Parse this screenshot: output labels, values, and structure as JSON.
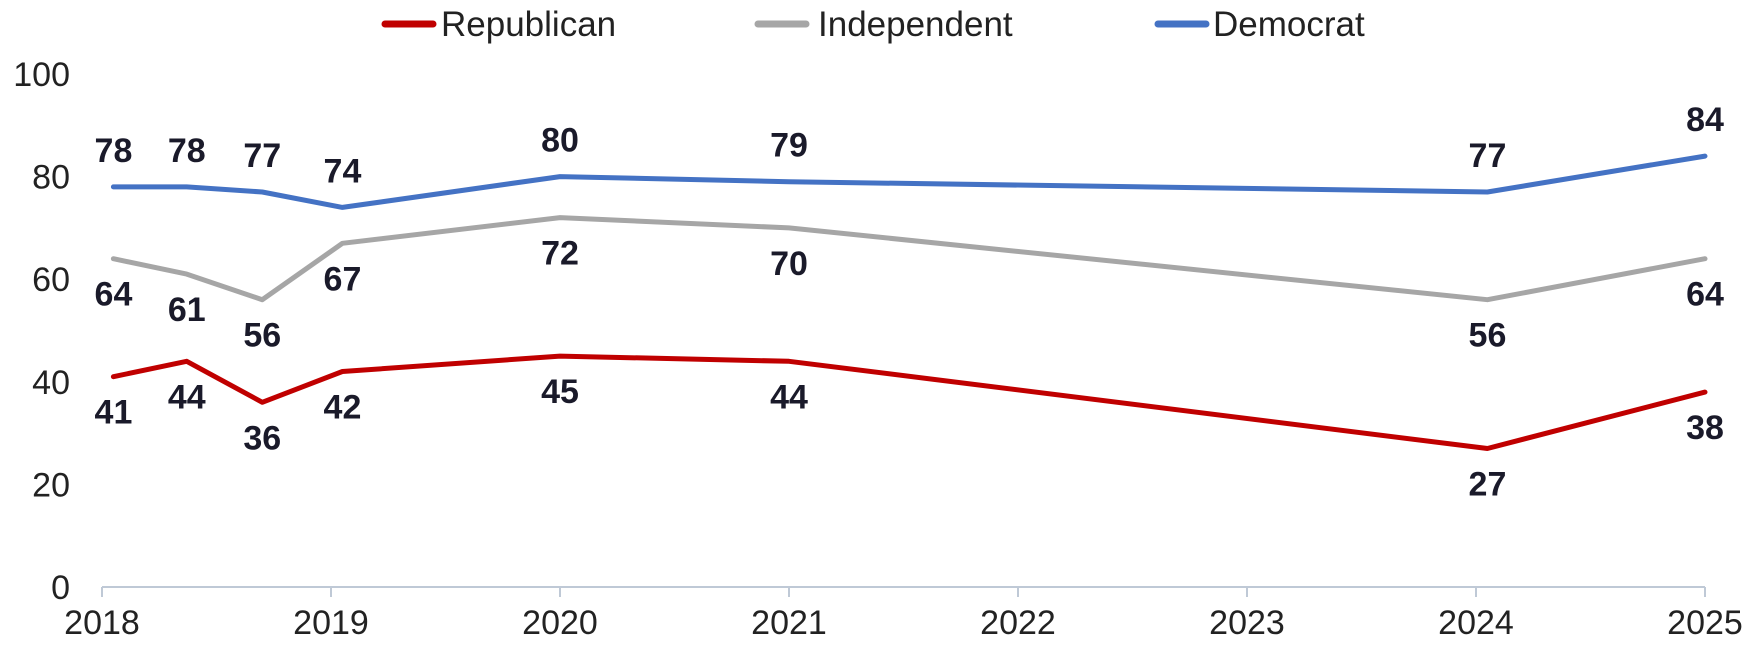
{
  "chart_data": {
    "type": "line",
    "title": "",
    "xlabel": "",
    "ylabel": "",
    "xlim": [
      2018,
      2025
    ],
    "ylim": [
      0,
      100
    ],
    "x_ticks": [
      "2018",
      "2019",
      "2020",
      "2021",
      "2022",
      "2023",
      "2024",
      "2025"
    ],
    "y_ticks": [
      "0",
      "20",
      "40",
      "60",
      "80",
      "100"
    ],
    "grid": false,
    "legend_position": "top-center",
    "series": [
      {
        "name": "Republican",
        "color": "#c00000",
        "points": [
          {
            "x": 2018.05,
            "y": 41
          },
          {
            "x": 2018.37,
            "y": 44
          },
          {
            "x": 2018.7,
            "y": 36
          },
          {
            "x": 2019.05,
            "y": 42
          },
          {
            "x": 2020.0,
            "y": 45
          },
          {
            "x": 2021.0,
            "y": 44
          },
          {
            "x": 2024.05,
            "y": 27
          },
          {
            "x": 2025.0,
            "y": 38
          }
        ],
        "labels": [
          "41",
          "44",
          "36",
          "42",
          "45",
          "44",
          "27",
          "38"
        ],
        "label_position": "below"
      },
      {
        "name": "Independent",
        "color": "#a6a6a6",
        "points": [
          {
            "x": 2018.05,
            "y": 64
          },
          {
            "x": 2018.37,
            "y": 61
          },
          {
            "x": 2018.7,
            "y": 56
          },
          {
            "x": 2019.05,
            "y": 67
          },
          {
            "x": 2020.0,
            "y": 72
          },
          {
            "x": 2021.0,
            "y": 70
          },
          {
            "x": 2024.05,
            "y": 56
          },
          {
            "x": 2025.0,
            "y": 64
          }
        ],
        "labels": [
          "64",
          "61",
          "56",
          "67",
          "72",
          "70",
          "56",
          "64"
        ],
        "label_position": "below"
      },
      {
        "name": "Democrat",
        "color": "#4472c4",
        "points": [
          {
            "x": 2018.05,
            "y": 78
          },
          {
            "x": 2018.37,
            "y": 78
          },
          {
            "x": 2018.7,
            "y": 77
          },
          {
            "x": 2019.05,
            "y": 74
          },
          {
            "x": 2020.0,
            "y": 80
          },
          {
            "x": 2021.0,
            "y": 79
          },
          {
            "x": 2024.05,
            "y": 77
          },
          {
            "x": 2025.0,
            "y": 84
          }
        ],
        "labels": [
          "78",
          "78",
          "77",
          "74",
          "80",
          "79",
          "77",
          "84"
        ],
        "label_position": "above"
      }
    ]
  }
}
